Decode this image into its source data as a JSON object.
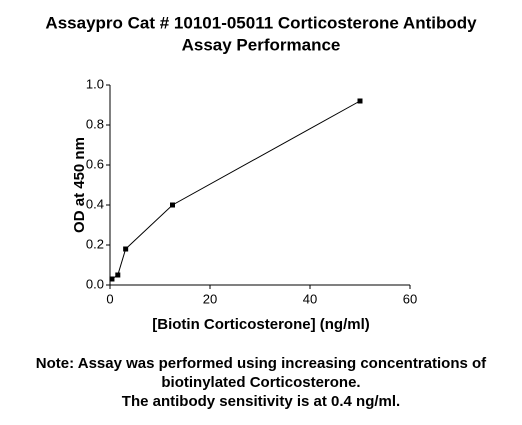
{
  "chart_data": {
    "type": "line",
    "title": [
      "Assaypro Cat # 10101-05011 Corticosterone Antibody",
      "Assay Performance"
    ],
    "x_label": "[Biotin Corticosterone] (ng/ml)",
    "y_label": "OD at 450 nm",
    "x": [
      0.39,
      1.56,
      3.13,
      12.5,
      50
    ],
    "values": [
      0.03,
      0.05,
      0.18,
      0.4,
      0.92
    ],
    "color": "#000000",
    "xlim": [
      0,
      60
    ],
    "xticks": [
      0,
      20,
      40,
      60
    ],
    "ylim": [
      0,
      1
    ],
    "yticks": [
      {
        "value": 0,
        "label": "0.0"
      },
      0.2,
      0.4,
      0.6,
      0.8,
      {
        "value": 1,
        "label": "1.0"
      }
    ],
    "note": [
      "Note: Assay was performed using increasing concentrations of",
      "biotinylated Corticosterone.",
      "The antibody sensitivity is at 0.4 ng/ml."
    ]
  }
}
